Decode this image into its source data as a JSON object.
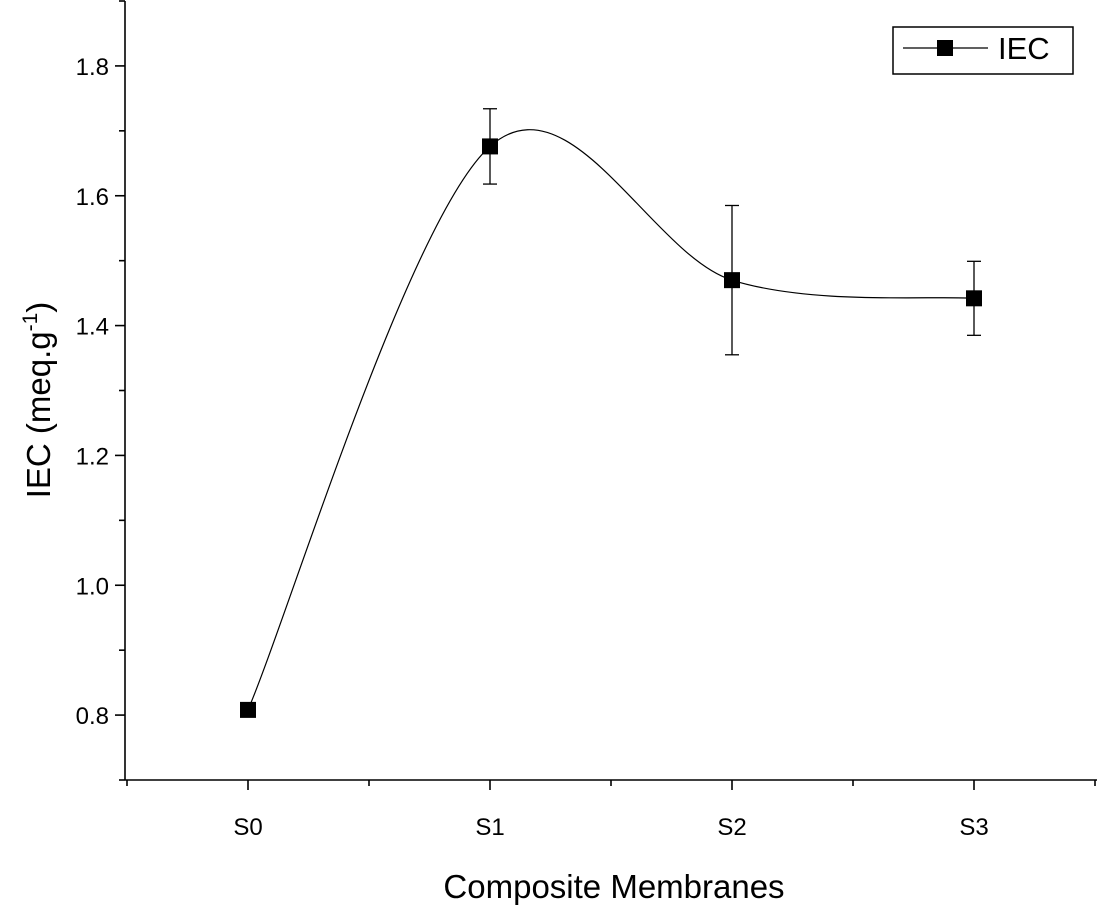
{
  "chart_data": {
    "type": "line",
    "title": "",
    "xlabel": "Composite Membranes",
    "ylabel_main": "IEC (meq.g",
    "ylabel_sup": "-1",
    "ylabel_close": ")",
    "categories": [
      "S0",
      "S1",
      "S2",
      "S3"
    ],
    "series": [
      {
        "name": "IEC",
        "values": [
          0.808,
          1.676,
          1.47,
          1.442
        ],
        "errors": [
          0.0,
          0.058,
          0.115,
          0.057
        ],
        "color": "#000000",
        "marker": "square",
        "smoothed": true
      }
    ],
    "ylim": [
      0.7,
      1.9
    ],
    "yticks": [
      0.8,
      1.0,
      1.2,
      1.4,
      1.6,
      1.8
    ],
    "ytick_labels": [
      "0.8",
      "1.0",
      "1.2",
      "1.4",
      "1.6",
      "1.8"
    ],
    "grid": false,
    "legend_position": "top-right"
  }
}
